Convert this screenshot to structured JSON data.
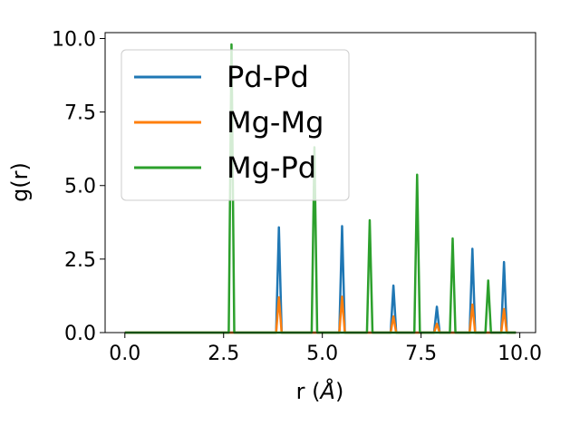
{
  "chart_data": {
    "type": "line",
    "xlabel": "r (",
    "xlabel_unit": "Å",
    "xlabel_close": ")",
    "ylabel": "g(r)",
    "xlim": [
      -0.5,
      10.4
    ],
    "ylim": [
      0,
      10.2
    ],
    "xticks": [
      0.0,
      2.5,
      5.0,
      7.5,
      10.0
    ],
    "xtick_labels": [
      "0.0",
      "2.5",
      "5.0",
      "7.5",
      "10.0"
    ],
    "yticks": [
      0.0,
      2.5,
      5.0,
      7.5,
      10.0
    ],
    "ytick_labels": [
      "0.0",
      "2.5",
      "5.0",
      "7.5",
      "10.0"
    ],
    "legend_position": "top-left",
    "grid": false,
    "x_range": [
      0.0,
      9.9
    ],
    "series": [
      {
        "name": "Pd-Pd",
        "color": "#1f77b4",
        "peaks": [
          [
            3.9,
            3.58
          ],
          [
            5.5,
            3.62
          ],
          [
            6.8,
            1.6
          ],
          [
            7.9,
            0.88
          ],
          [
            8.8,
            2.85
          ],
          [
            9.6,
            2.4
          ]
        ]
      },
      {
        "name": "Mg-Mg",
        "color": "#ff7f0e",
        "peaks": [
          [
            3.9,
            1.2
          ],
          [
            5.5,
            1.22
          ],
          [
            6.8,
            0.55
          ],
          [
            7.9,
            0.3
          ],
          [
            8.8,
            0.95
          ],
          [
            9.6,
            0.8
          ]
        ]
      },
      {
        "name": "Mg-Pd",
        "color": "#2ca02c",
        "peaks": [
          [
            2.7,
            9.8
          ],
          [
            4.8,
            6.3
          ],
          [
            6.2,
            3.82
          ],
          [
            7.4,
            5.37
          ],
          [
            8.3,
            3.2
          ],
          [
            9.2,
            1.77
          ]
        ]
      }
    ]
  }
}
